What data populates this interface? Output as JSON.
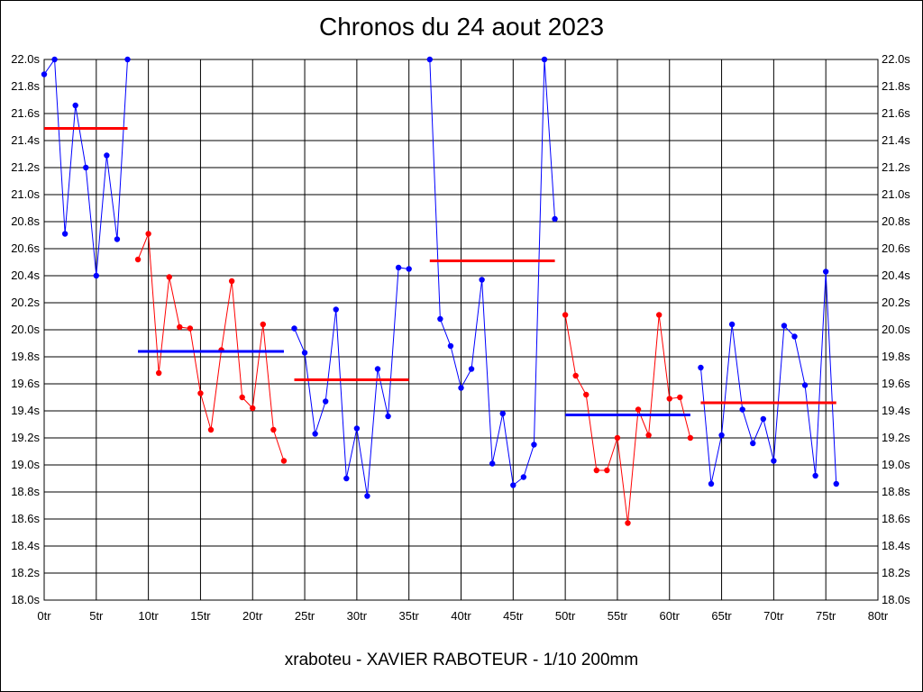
{
  "chart_data": {
    "type": "line",
    "title": "Chronos du 24 aout 2023",
    "footer": "xraboteu - XAVIER RABOTEUR - 1/10 200mm",
    "xlabel": "",
    "ylabel": "",
    "xlim": [
      0,
      80
    ],
    "ylim": [
      18.0,
      22.0
    ],
    "x_ticks": [
      0,
      5,
      10,
      15,
      20,
      25,
      30,
      35,
      40,
      45,
      50,
      55,
      60,
      65,
      70,
      75,
      80
    ],
    "x_tick_labels": [
      "0tr",
      "5tr",
      "10tr",
      "15tr",
      "20tr",
      "25tr",
      "30tr",
      "35tr",
      "40tr",
      "45tr",
      "50tr",
      "55tr",
      "60tr",
      "65tr",
      "70tr",
      "75tr",
      "80tr"
    ],
    "y_ticks": [
      18.0,
      18.2,
      18.4,
      18.6,
      18.8,
      19.0,
      19.2,
      19.4,
      19.6,
      19.8,
      20.0,
      20.2,
      20.4,
      20.6,
      20.8,
      21.0,
      21.2,
      21.4,
      21.6,
      21.8,
      22.0
    ],
    "y_tick_labels": [
      "18.0s",
      "18.2s",
      "18.4s",
      "18.6s",
      "18.8s",
      "19.0s",
      "19.2s",
      "19.4s",
      "19.6s",
      "19.8s",
      "20.0s",
      "20.2s",
      "20.4s",
      "20.6s",
      "20.8s",
      "21.0s",
      "21.2s",
      "21.4s",
      "21.6s",
      "21.8s",
      "22.0s"
    ],
    "grid": true,
    "colors": {
      "blue": "#0000ff",
      "red": "#ff0000",
      "grid": "#000000"
    },
    "series": [
      {
        "color": "#0000ff",
        "x": [
          0,
          1,
          2,
          3,
          4,
          5,
          6,
          7,
          8
        ],
        "y": [
          21.89,
          22.0,
          20.71,
          21.66,
          21.2,
          20.4,
          21.29,
          20.67,
          22.0
        ]
      },
      {
        "color": "#ff0000",
        "x": [
          9,
          10,
          11,
          12,
          13,
          14,
          15,
          16,
          17,
          18,
          19,
          20,
          21,
          22,
          23
        ],
        "y": [
          20.52,
          20.71,
          19.68,
          20.39,
          20.02,
          20.01,
          19.53,
          19.26,
          19.85,
          20.36,
          19.5,
          19.42,
          20.04,
          19.26,
          19.03
        ]
      },
      {
        "color": "#0000ff",
        "x": [
          24,
          25,
          26,
          27,
          28,
          29,
          30,
          31,
          32,
          33,
          34,
          35
        ],
        "y": [
          20.01,
          19.83,
          19.23,
          19.47,
          20.15,
          18.9,
          19.27,
          18.77,
          19.71,
          19.36,
          20.46,
          20.45
        ]
      },
      {
        "color": "#0000ff",
        "x": [
          37,
          38,
          39,
          40,
          41,
          42,
          43,
          44,
          45,
          46,
          47,
          48,
          49
        ],
        "y": [
          22.0,
          20.08,
          19.88,
          19.57,
          19.71,
          20.37,
          19.01,
          19.38,
          18.85,
          18.91,
          19.15,
          22.0,
          20.82
        ]
      },
      {
        "color": "#ff0000",
        "x": [
          50,
          51,
          52,
          53,
          54,
          55,
          56,
          57,
          58,
          59,
          60,
          61,
          62
        ],
        "y": [
          20.11,
          19.66,
          19.52,
          18.96,
          18.96,
          19.2,
          18.57,
          19.41,
          19.22,
          20.11,
          19.49,
          19.5,
          19.2
        ]
      },
      {
        "color": "#0000ff",
        "x": [
          63,
          64,
          65,
          66,
          67,
          68,
          69,
          70,
          71,
          72,
          73,
          74,
          75,
          76
        ],
        "y": [
          19.72,
          18.86,
          19.22,
          20.04,
          19.41,
          19.16,
          19.34,
          19.03,
          20.03,
          19.95,
          19.59,
          18.92,
          20.43,
          18.86
        ]
      }
    ],
    "averages": [
      {
        "color": "#ff0000",
        "x_start": 0,
        "x_end": 8,
        "value": 21.49
      },
      {
        "color": "#0000ff",
        "x_start": 9,
        "x_end": 23,
        "value": 19.84
      },
      {
        "color": "#ff0000",
        "x_start": 24,
        "x_end": 35,
        "value": 19.63
      },
      {
        "color": "#ff0000",
        "x_start": 37,
        "x_end": 49,
        "value": 20.51
      },
      {
        "color": "#0000ff",
        "x_start": 50,
        "x_end": 62,
        "value": 19.37
      },
      {
        "color": "#ff0000",
        "x_start": 63,
        "x_end": 76,
        "value": 19.46
      }
    ]
  }
}
